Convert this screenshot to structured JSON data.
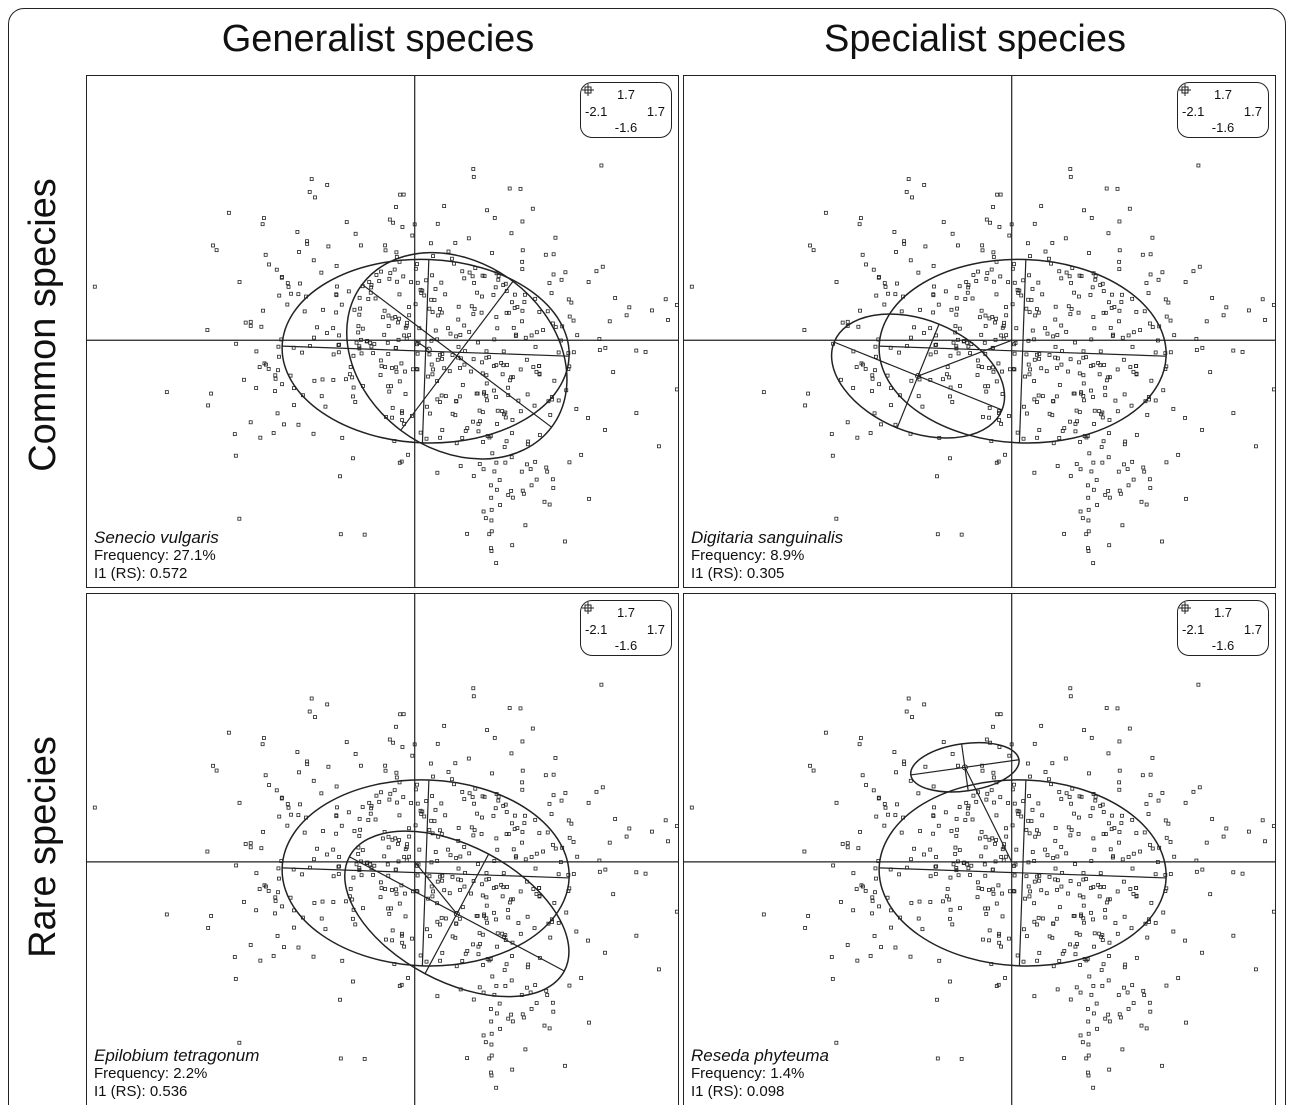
{
  "column_titles": [
    "Generalist species",
    "Specialist species"
  ],
  "row_titles": [
    "Common species",
    "Rare species"
  ],
  "scale": {
    "top": "1.7",
    "left": "-2.1",
    "right": "1.7",
    "bottom": "-1.6"
  },
  "colors": {
    "line": "#222222",
    "background": "#ffffff"
  },
  "chart_data": [
    {
      "type": "scatter",
      "species": "Senecio vulgaris",
      "frequency_label": "Frequency: 27.1%",
      "index_label": "I1 (RS): 0.572",
      "xlim": [
        -2.1,
        1.7
      ],
      "ylim": [
        -1.6,
        1.7
      ],
      "sites_ellipse": {
        "cx": 0.07,
        "cy": -0.07,
        "rx": 0.92,
        "ry": 0.59,
        "angle_deg": -2
      },
      "species_ellipse": {
        "cx": 0.27,
        "cy": -0.1,
        "rx": 0.76,
        "ry": 0.6,
        "angle_deg": -37
      },
      "marginality_arrow": {
        "x": 0.09,
        "y": -0.06
      }
    },
    {
      "type": "scatter",
      "species": "Digitaria sanguinalis",
      "frequency_label": "Frequency: 8.9%",
      "index_label": "I1 (RS): 0.305",
      "xlim": [
        -2.1,
        1.7
      ],
      "ylim": [
        -1.6,
        1.7
      ],
      "sites_ellipse": {
        "cx": 0.07,
        "cy": -0.07,
        "rx": 0.92,
        "ry": 0.59,
        "angle_deg": -2
      },
      "species_ellipse": {
        "cx": -0.6,
        "cy": -0.23,
        "rx": 0.58,
        "ry": 0.36,
        "angle_deg": -22
      },
      "marginality_arrow": {
        "x": -0.6,
        "y": -0.23
      }
    },
    {
      "type": "scatter",
      "species": "Epilobium tetragonum",
      "frequency_label": "Frequency: 2.2%",
      "index_label": "I1 (RS): 0.536",
      "xlim": [
        -2.1,
        1.7
      ],
      "ylim": [
        -1.6,
        1.7
      ],
      "sites_ellipse": {
        "cx": 0.07,
        "cy": -0.07,
        "rx": 0.92,
        "ry": 0.59,
        "angle_deg": -2
      },
      "species_ellipse": {
        "cx": 0.27,
        "cy": -0.33,
        "rx": 0.78,
        "ry": 0.43,
        "angle_deg": -28
      },
      "marginality_arrow": {
        "x": 0.27,
        "y": -0.33
      }
    },
    {
      "type": "scatter",
      "species": "Reseda phyteuma",
      "frequency_label": "Frequency: 1.4%",
      "index_label": "I1 (RS): 0.098",
      "xlim": [
        -2.1,
        1.7
      ],
      "ylim": [
        -1.6,
        1.7
      ],
      "sites_ellipse": {
        "cx": 0.07,
        "cy": -0.07,
        "rx": 0.92,
        "ry": 0.59,
        "angle_deg": -2
      },
      "species_ellipse": {
        "cx": -0.3,
        "cy": 0.6,
        "rx": 0.35,
        "ry": 0.15,
        "angle_deg": 8
      },
      "marginality_arrow": {
        "x": -0.3,
        "y": 0.6
      }
    }
  ]
}
